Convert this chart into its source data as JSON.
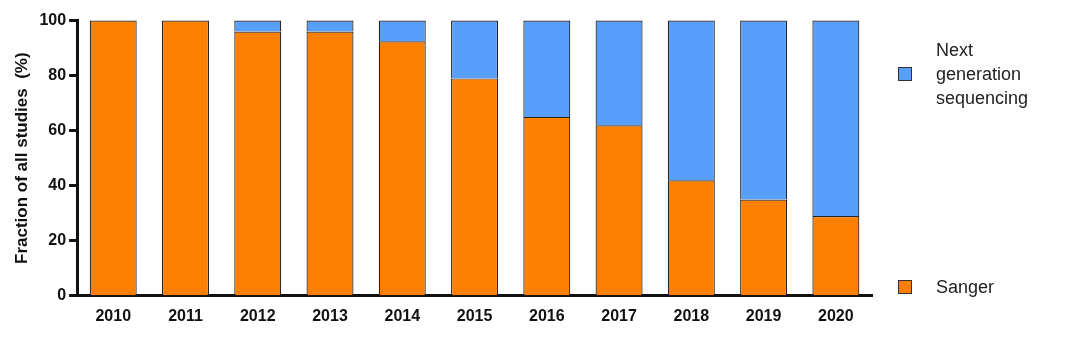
{
  "chart_data": {
    "type": "bar",
    "stacked": true,
    "ylabel": "Fraction of all studies  (%)",
    "categories": [
      "2010",
      "2011",
      "2012",
      "2013",
      "2014",
      "2015",
      "2016",
      "2017",
      "2018",
      "2019",
      "2020"
    ],
    "series": [
      {
        "name": "Sanger",
        "color": "#ff8000",
        "values": [
          100,
          100,
          96,
          96,
          92.5,
          79,
          65,
          62,
          42,
          35,
          29
        ]
      },
      {
        "name": "Next generation sequencing",
        "color": "#579ffb",
        "values": [
          0,
          0,
          4,
          4,
          7.5,
          21,
          35,
          38,
          58,
          65,
          71
        ]
      }
    ],
    "ylim": [
      0,
      100
    ],
    "yticks": [
      0,
      20,
      40,
      60,
      80,
      100
    ],
    "grid": false,
    "legend": "right"
  }
}
